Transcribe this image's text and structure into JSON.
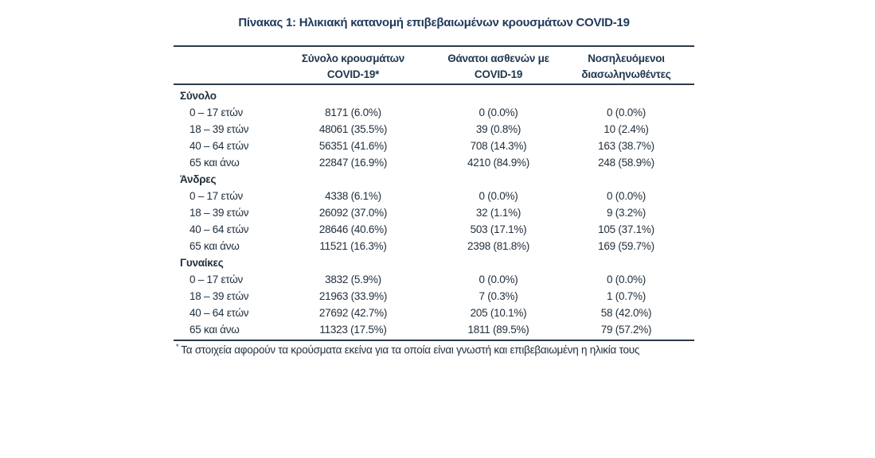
{
  "title": "Πίνακας 1: Ηλικιακή κατανομή επιβεβαιωμένων κρουσμάτων COVID-19",
  "table": {
    "columns": [
      {
        "line1": "Σύνολο κρουσμάτων",
        "line2": "COVID-19*"
      },
      {
        "line1": "Θάνατοι ασθενών με",
        "line2": "COVID-19"
      },
      {
        "line1": "Νοσηλευόμενοι",
        "line2": "διασωληνωθέντες"
      }
    ],
    "sections": [
      {
        "label": "Σύνολο",
        "rows": [
          {
            "label": "0 – 17 ετών",
            "values": [
              "8171 (6.0%)",
              "0 (0.0%)",
              "0 (0.0%)"
            ]
          },
          {
            "label": "18 – 39 ετών",
            "values": [
              "48061 (35.5%)",
              "39 (0.8%)",
              "10 (2.4%)"
            ]
          },
          {
            "label": "40 – 64 ετών",
            "values": [
              "56351 (41.6%)",
              "708 (14.3%)",
              "163 (38.7%)"
            ]
          },
          {
            "label": "65 και άνω",
            "values": [
              "22847 (16.9%)",
              "4210 (84.9%)",
              "248 (58.9%)"
            ]
          }
        ]
      },
      {
        "label": "Άνδρες",
        "rows": [
          {
            "label": "0 – 17 ετών",
            "values": [
              "4338 (6.1%)",
              "0 (0.0%)",
              "0 (0.0%)"
            ]
          },
          {
            "label": "18 – 39 ετών",
            "values": [
              "26092 (37.0%)",
              "32 (1.1%)",
              "9 (3.2%)"
            ]
          },
          {
            "label": "40 – 64 ετών",
            "values": [
              "28646 (40.6%)",
              "503 (17.1%)",
              "105 (37.1%)"
            ]
          },
          {
            "label": "65 και άνω",
            "values": [
              "11521 (16.3%)",
              "2398 (81.8%)",
              "169 (59.7%)"
            ]
          }
        ]
      },
      {
        "label": "Γυναίκες",
        "rows": [
          {
            "label": "0 – 17 ετών",
            "values": [
              "3832 (5.9%)",
              "0 (0.0%)",
              "0 (0.0%)"
            ]
          },
          {
            "label": "18 – 39 ετών",
            "values": [
              "21963 (33.9%)",
              "7 (0.3%)",
              "1 (0.7%)"
            ]
          },
          {
            "label": "40 – 64 ετών",
            "values": [
              "27692 (42.7%)",
              "205 (10.1%)",
              "58 (42.0%)"
            ]
          },
          {
            "label": "65 και άνω",
            "values": [
              "11323 (17.5%)",
              "1811 (89.5%)",
              "79 (57.2%)"
            ]
          }
        ]
      }
    ]
  },
  "footnote": {
    "marker": "*",
    "text": "Τα στοιχεία αφορούν τα κρούσματα εκείνα για τα οποία είναι γνωστή και επιβεβαιωμένη η ηλικία τους"
  },
  "colors": {
    "title": "#1f3a5c",
    "body_text": "#22303d",
    "rule": "#2b3a49",
    "background": "#ffffff"
  }
}
